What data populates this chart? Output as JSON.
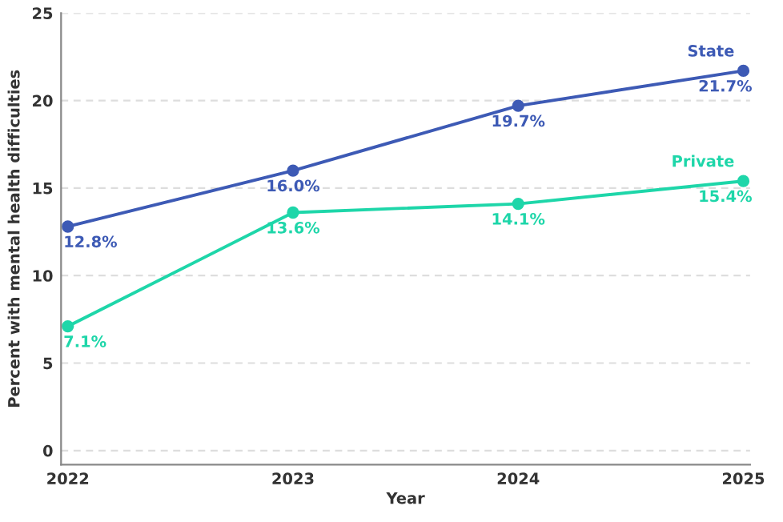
{
  "chart_data": {
    "type": "line",
    "xlabel": "Year",
    "ylabel": "Percent with mental health difficulties",
    "x": [
      2022,
      2023,
      2024,
      2025
    ],
    "series": [
      {
        "name": "State",
        "color": "#3d5ab5",
        "values": [
          12.8,
          16.0,
          19.7,
          21.7
        ],
        "value_labels": [
          "12.8%",
          "16.0%",
          "19.7%",
          "21.7%"
        ]
      },
      {
        "name": "Private",
        "color": "#1ed6a9",
        "values": [
          7.1,
          13.6,
          14.1,
          15.4
        ],
        "value_labels": [
          "7.1%",
          "13.6%",
          "14.1%",
          "15.4%"
        ]
      }
    ],
    "xlim": [
      2021.97,
      2025.03
    ],
    "xticks": [
      2022,
      2023,
      2024,
      2025
    ],
    "ylim": [
      -0.8,
      25
    ],
    "yticks": [
      0,
      5,
      10,
      15,
      20,
      25
    ],
    "grid": "y",
    "marker": "circle",
    "line_style": "solid",
    "legend": false
  }
}
